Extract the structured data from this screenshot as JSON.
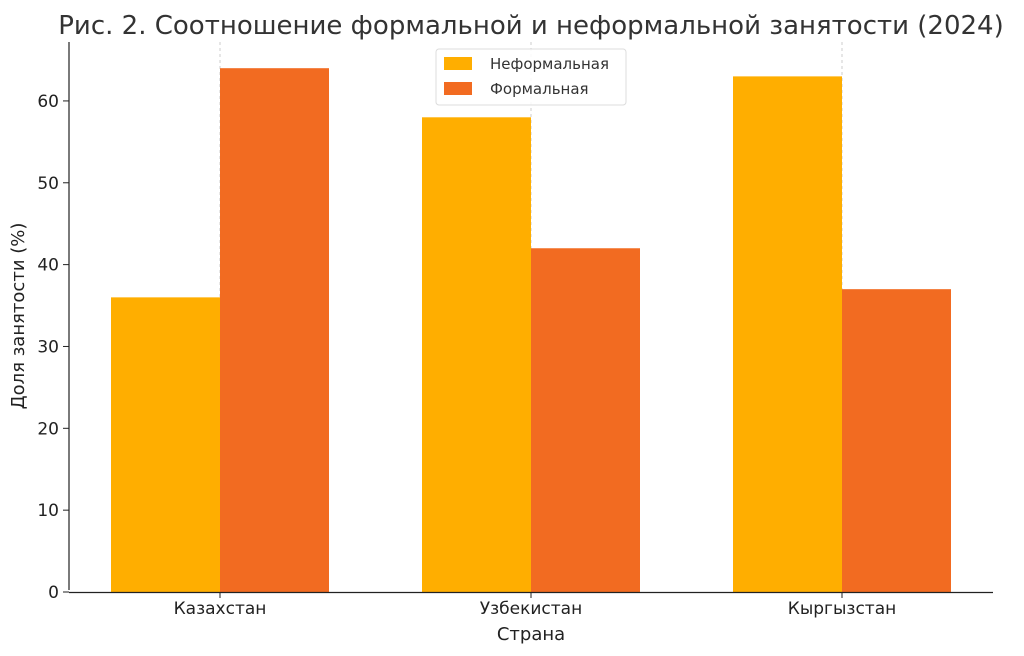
{
  "chart_data": {
    "type": "bar",
    "title": "Рис. 2. Соотношение формальной и неформальной занятости (2024)",
    "xlabel": "Страна",
    "ylabel": "Доля занятости (%)",
    "categories": [
      "Казахстан",
      "Узбекистан",
      "Кыргызстан"
    ],
    "series": [
      {
        "name": "Неформальная",
        "values": [
          36,
          58,
          63
        ],
        "color": "#FFAE00"
      },
      {
        "name": "Формальная",
        "values": [
          64,
          42,
          37
        ],
        "color": "#F26B21"
      }
    ],
    "ylim": [
      0,
      67.2
    ],
    "yticks": [
      0,
      10,
      20,
      30,
      40,
      50,
      60
    ],
    "grid": "vertical-dashed",
    "legend_position": "top-center"
  }
}
